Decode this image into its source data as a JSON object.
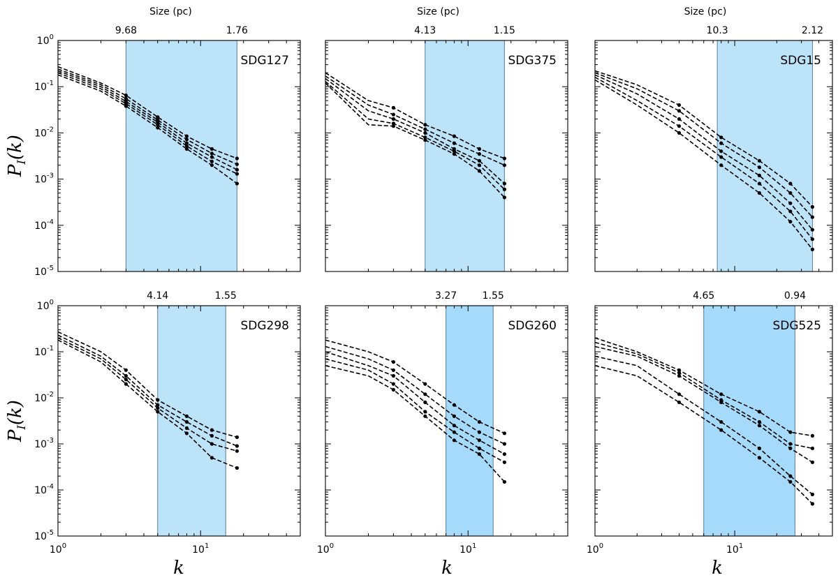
{
  "figure": {
    "ylabel": "P_I(k)",
    "xlabel": "k"
  },
  "chart_data": [
    {
      "type": "line",
      "panel": "SDG127",
      "title": "SDG127",
      "xscale": "log",
      "yscale": "log",
      "xlim": [
        1,
        50
      ],
      "ylim": [
        1e-05,
        1
      ],
      "x_tick_labels": [
        "10^0",
        "10^1"
      ],
      "y_tick_labels": [
        "10^0",
        "10^-1",
        "10^-2",
        "10^-3",
        "10^-4",
        "10^-5"
      ],
      "size_axis_title": "Size (pc)",
      "size_labels": [
        "9.68",
        "1.76"
      ],
      "band_k": [
        3,
        18
      ],
      "series": [
        {
          "name": "s1",
          "x": [
            1,
            2,
            3,
            5,
            8,
            12,
            18
          ],
          "y": [
            0.27,
            0.12,
            0.065,
            0.022,
            0.0085,
            0.0045,
            0.0028
          ]
        },
        {
          "name": "s2",
          "x": [
            1,
            2,
            3,
            5,
            8,
            12,
            18
          ],
          "y": [
            0.24,
            0.11,
            0.055,
            0.019,
            0.0072,
            0.0036,
            0.0021
          ]
        },
        {
          "name": "s3",
          "x": [
            1,
            2,
            3,
            5,
            8,
            12,
            18
          ],
          "y": [
            0.22,
            0.1,
            0.048,
            0.017,
            0.006,
            0.003,
            0.0016
          ]
        },
        {
          "name": "s4",
          "x": [
            1,
            2,
            3,
            5,
            8,
            12,
            18
          ],
          "y": [
            0.2,
            0.09,
            0.043,
            0.015,
            0.0052,
            0.0024,
            0.0013
          ]
        },
        {
          "name": "s5",
          "x": [
            1,
            2,
            3,
            5,
            8,
            12,
            18
          ],
          "y": [
            0.18,
            0.08,
            0.038,
            0.013,
            0.0045,
            0.002,
            0.0008
          ]
        }
      ]
    },
    {
      "type": "line",
      "panel": "SDG375",
      "title": "SDG375",
      "xscale": "log",
      "yscale": "log",
      "xlim": [
        1,
        50
      ],
      "ylim": [
        1e-05,
        1
      ],
      "x_tick_labels": [
        "10^0",
        "10^1"
      ],
      "y_tick_labels": [],
      "size_axis_title": "Size (pc)",
      "size_labels": [
        "4.13",
        "1.15"
      ],
      "band_k": [
        5,
        18
      ],
      "series": [
        {
          "name": "s1",
          "x": [
            1,
            2,
            3,
            5,
            8,
            12,
            18
          ],
          "y": [
            0.2,
            0.05,
            0.035,
            0.015,
            0.0085,
            0.0045,
            0.0028
          ]
        },
        {
          "name": "s2",
          "x": [
            1,
            2,
            3,
            5,
            8,
            12,
            18
          ],
          "y": [
            0.17,
            0.04,
            0.025,
            0.012,
            0.006,
            0.0035,
            0.002
          ]
        },
        {
          "name": "s3",
          "x": [
            1,
            2,
            3,
            5,
            8,
            12,
            18
          ],
          "y": [
            0.15,
            0.03,
            0.02,
            0.01,
            0.0045,
            0.0025,
            0.0008
          ]
        },
        {
          "name": "s4",
          "x": [
            1,
            2,
            3,
            5,
            8,
            12,
            18
          ],
          "y": [
            0.13,
            0.02,
            0.016,
            0.008,
            0.004,
            0.002,
            0.0006
          ]
        },
        {
          "name": "s5",
          "x": [
            1,
            2,
            3,
            5,
            8,
            12,
            18
          ],
          "y": [
            0.12,
            0.015,
            0.014,
            0.007,
            0.0035,
            0.0015,
            0.0004
          ]
        }
      ]
    },
    {
      "type": "line",
      "panel": "SDG15",
      "title": "SDG15",
      "xscale": "log",
      "yscale": "log",
      "xlim": [
        1,
        50
      ],
      "ylim": [
        1e-05,
        1
      ],
      "x_tick_labels": [
        "10^0",
        "10^1"
      ],
      "y_tick_labels": [],
      "size_axis_title": "Size (pc)",
      "size_labels": [
        "10.3",
        "2.12"
      ],
      "band_k": [
        7.5,
        36
      ],
      "series": [
        {
          "name": "s1",
          "x": [
            1,
            2,
            4,
            8,
            15,
            25,
            36
          ],
          "y": [
            0.22,
            0.11,
            0.04,
            0.008,
            0.0025,
            0.0008,
            0.00025
          ]
        },
        {
          "name": "s2",
          "x": [
            1,
            2,
            4,
            8,
            15,
            25,
            36
          ],
          "y": [
            0.2,
            0.09,
            0.03,
            0.006,
            0.0018,
            0.0005,
            0.00015
          ]
        },
        {
          "name": "s3",
          "x": [
            1,
            2,
            4,
            8,
            15,
            25,
            36
          ],
          "y": [
            0.18,
            0.07,
            0.02,
            0.004,
            0.0012,
            0.0003,
            8e-05
          ]
        },
        {
          "name": "s4",
          "x": [
            1,
            2,
            4,
            8,
            15,
            25,
            36
          ],
          "y": [
            0.16,
            0.05,
            0.014,
            0.003,
            0.0008,
            0.0002,
            5e-05
          ]
        },
        {
          "name": "s5",
          "x": [
            1,
            2,
            4,
            8,
            15,
            25,
            36
          ],
          "y": [
            0.14,
            0.04,
            0.01,
            0.002,
            0.0005,
            0.00012,
            3e-05
          ]
        }
      ]
    },
    {
      "type": "line",
      "panel": "SDG298",
      "title": "SDG298",
      "xscale": "log",
      "yscale": "log",
      "xlim": [
        1,
        50
      ],
      "ylim": [
        1e-05,
        1
      ],
      "x_tick_labels": [
        "10^0",
        "10^1"
      ],
      "y_tick_labels": [
        "10^0",
        "10^-1",
        "10^-2",
        "10^-3",
        "10^-4",
        "10^-5"
      ],
      "size_axis_title": "",
      "size_labels": [
        "4.14",
        "1.55"
      ],
      "band_k": [
        5,
        15
      ],
      "series": [
        {
          "name": "s1",
          "x": [
            1,
            2,
            3,
            5,
            8,
            12,
            18
          ],
          "y": [
            0.27,
            0.1,
            0.04,
            0.009,
            0.004,
            0.002,
            0.0014
          ]
        },
        {
          "name": "s2",
          "x": [
            1,
            2,
            3,
            5,
            8,
            12,
            18
          ],
          "y": [
            0.23,
            0.08,
            0.03,
            0.007,
            0.003,
            0.0015,
            0.0009
          ]
        },
        {
          "name": "s3",
          "x": [
            1,
            2,
            3,
            5,
            8,
            12,
            18
          ],
          "y": [
            0.2,
            0.07,
            0.025,
            0.006,
            0.0022,
            0.001,
            0.0007
          ]
        },
        {
          "name": "s4",
          "x": [
            1,
            2,
            3,
            5,
            8,
            12,
            18
          ],
          "y": [
            0.18,
            0.06,
            0.02,
            0.005,
            0.0017,
            0.0005,
            0.0003
          ]
        }
      ]
    },
    {
      "type": "line",
      "panel": "SDG260",
      "title": "SDG260",
      "xscale": "log",
      "yscale": "log",
      "xlim": [
        1,
        50
      ],
      "ylim": [
        1e-05,
        1
      ],
      "x_tick_labels": [
        "10^0",
        "10^1"
      ],
      "y_tick_labels": [],
      "size_axis_title": "",
      "size_labels": [
        "3.27",
        "1.55"
      ],
      "band_k": [
        7,
        15
      ],
      "series": [
        {
          "name": "s1",
          "x": [
            1,
            2,
            3,
            5,
            8,
            12,
            18
          ],
          "y": [
            0.18,
            0.1,
            0.06,
            0.02,
            0.007,
            0.003,
            0.0017
          ]
        },
        {
          "name": "s2",
          "x": [
            1,
            2,
            3,
            5,
            8,
            12,
            18
          ],
          "y": [
            0.13,
            0.07,
            0.04,
            0.012,
            0.004,
            0.0018,
            0.001
          ]
        },
        {
          "name": "s3",
          "x": [
            1,
            2,
            3,
            5,
            8,
            12,
            18
          ],
          "y": [
            0.1,
            0.05,
            0.03,
            0.008,
            0.0025,
            0.0012,
            0.0006
          ]
        },
        {
          "name": "s4",
          "x": [
            1,
            2,
            3,
            5,
            8,
            12,
            18
          ],
          "y": [
            0.07,
            0.04,
            0.02,
            0.005,
            0.0018,
            0.0008,
            0.0004
          ]
        },
        {
          "name": "s5",
          "x": [
            1,
            2,
            3,
            5,
            8,
            12,
            18
          ],
          "y": [
            0.05,
            0.03,
            0.015,
            0.004,
            0.0012,
            0.0006,
            0.00015
          ]
        }
      ]
    },
    {
      "type": "line",
      "panel": "SDG525",
      "title": "SDG525",
      "xscale": "log",
      "yscale": "log",
      "xlim": [
        1,
        50
      ],
      "ylim": [
        1e-05,
        1
      ],
      "x_tick_labels": [
        "10^0",
        "10^1"
      ],
      "y_tick_labels": [],
      "size_axis_title": "",
      "size_labels": [
        "4.65",
        "0.94"
      ],
      "band_k": [
        6,
        27
      ],
      "series": [
        {
          "name": "s1",
          "x": [
            1,
            2,
            4,
            8,
            15,
            25,
            36
          ],
          "y": [
            0.2,
            0.1,
            0.04,
            0.012,
            0.005,
            0.0018,
            0.0015
          ]
        },
        {
          "name": "s2",
          "x": [
            1,
            2,
            4,
            8,
            15,
            25,
            36
          ],
          "y": [
            0.16,
            0.09,
            0.035,
            0.009,
            0.003,
            0.001,
            0.0008
          ]
        },
        {
          "name": "s3",
          "x": [
            1,
            2,
            4,
            8,
            15,
            25,
            36
          ],
          "y": [
            0.13,
            0.08,
            0.03,
            0.008,
            0.0025,
            0.0008,
            0.0004
          ]
        },
        {
          "name": "s4",
          "x": [
            1,
            2,
            4,
            8,
            15,
            25,
            36
          ],
          "y": [
            0.08,
            0.05,
            0.012,
            0.003,
            0.0008,
            0.0002,
            8e-05
          ]
        },
        {
          "name": "s5",
          "x": [
            1,
            2,
            4,
            8,
            15,
            25,
            36
          ],
          "y": [
            0.05,
            0.03,
            0.008,
            0.002,
            0.0005,
            0.00015,
            5e-05
          ]
        }
      ]
    }
  ]
}
